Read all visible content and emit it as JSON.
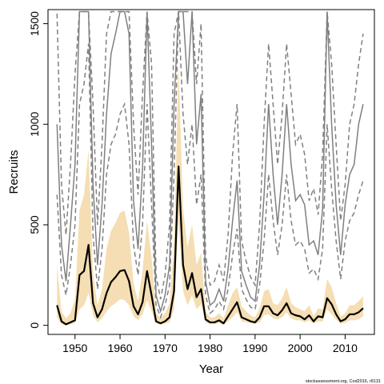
{
  "chart_data": {
    "type": "line",
    "title": "",
    "xlabel": "Year",
    "ylabel": "Recruits",
    "credit": "stockassessment.org, Cod2016, r8131",
    "xlim": [
      1944,
      2016.5
    ],
    "ylim": [
      -45,
      1570
    ],
    "x_ticks": [
      1950,
      1960,
      1970,
      1980,
      1990,
      2000,
      2010
    ],
    "y_ticks": [
      0,
      500,
      1000,
      1500
    ],
    "grid": false,
    "legend": "none",
    "colors": {
      "main": "#000000",
      "band": "#f5deb3",
      "other": "#808080"
    },
    "main_series": {
      "x": [
        1946,
        1947,
        1948,
        1949,
        1950,
        1951,
        1952,
        1953,
        1954,
        1955,
        1956,
        1957,
        1958,
        1959,
        1960,
        1961,
        1962,
        1963,
        1964,
        1965,
        1966,
        1967,
        1968,
        1969,
        1970,
        1971,
        1972,
        1973,
        1974,
        1975,
        1976,
        1977,
        1978,
        1979,
        1980,
        1981,
        1982,
        1983,
        1984,
        1985,
        1986,
        1987,
        1988,
        1989,
        1990,
        1991,
        1992,
        1993,
        1994,
        1995,
        1996,
        1997,
        1998,
        1999,
        2000,
        2001,
        2002,
        2003,
        2004,
        2005,
        2006,
        2007,
        2008,
        2009,
        2010,
        2011,
        2012,
        2013,
        2014
      ],
      "y": [
        100,
        20,
        5,
        15,
        25,
        250,
        270,
        400,
        110,
        40,
        80,
        160,
        215,
        240,
        270,
        275,
        220,
        95,
        55,
        115,
        270,
        150,
        20,
        10,
        20,
        40,
        170,
        790,
        300,
        180,
        260,
        140,
        180,
        30,
        15,
        15,
        25,
        10,
        45,
        80,
        115,
        40,
        30,
        20,
        15,
        40,
        95,
        95,
        60,
        50,
        75,
        110,
        60,
        50,
        45,
        30,
        50,
        20,
        45,
        40,
        135,
        105,
        55,
        20,
        30,
        55,
        55,
        65,
        85
      ],
      "ci_lower": [
        40,
        5,
        0,
        5,
        10,
        80,
        100,
        160,
        50,
        15,
        35,
        70,
        95,
        110,
        130,
        125,
        100,
        45,
        25,
        55,
        125,
        70,
        10,
        3,
        8,
        15,
        80,
        520,
        170,
        100,
        150,
        80,
        105,
        15,
        5,
        5,
        10,
        3,
        20,
        40,
        65,
        20,
        15,
        10,
        5,
        15,
        50,
        55,
        35,
        30,
        40,
        65,
        35,
        25,
        25,
        15,
        25,
        8,
        20,
        18,
        80,
        55,
        28,
        8,
        12,
        25,
        25,
        30,
        45
      ],
      "ci_upper": [
        300,
        70,
        35,
        60,
        130,
        570,
        650,
        870,
        260,
        100,
        180,
        380,
        470,
        510,
        560,
        570,
        460,
        210,
        120,
        270,
        520,
        340,
        60,
        35,
        60,
        110,
        410,
        1300,
        580,
        390,
        500,
        300,
        360,
        70,
        40,
        40,
        60,
        35,
        100,
        160,
        190,
        95,
        70,
        50,
        40,
        85,
        170,
        180,
        110,
        100,
        135,
        190,
        110,
        90,
        80,
        70,
        100,
        45,
        85,
        80,
        230,
        190,
        110,
        45,
        60,
        100,
        100,
        120,
        145
      ]
    },
    "other_series": [
      {
        "style": "solid",
        "x": [
          1946,
          1947,
          1948,
          1949,
          1950,
          1951,
          1952,
          1953,
          1954,
          1955,
          1956,
          1957,
          1958,
          1959,
          1960,
          1961,
          1962,
          1963,
          1964,
          1965,
          1966,
          1967,
          1968,
          1969,
          1970,
          1971,
          1972,
          1973,
          1974,
          1975,
          1976,
          1977,
          1978,
          1979,
          1980,
          1981,
          1982,
          1983,
          1984,
          1985,
          1986,
          1987,
          1988,
          1989,
          1990,
          1991,
          1992,
          1993,
          1994,
          1995,
          1996,
          1997,
          1998,
          1999,
          2000,
          2001,
          2002,
          2003,
          2004,
          2005,
          2006,
          2007,
          2008,
          2009,
          2010,
          2011,
          2012,
          2013,
          2014
        ],
        "y": [
          1000,
          400,
          220,
          500,
          800,
          1560,
          1560,
          1560,
          700,
          300,
          600,
          1050,
          1350,
          1450,
          1560,
          1560,
          1450,
          620,
          380,
          780,
          1560,
          900,
          150,
          70,
          150,
          300,
          1100,
          1560,
          1560,
          1200,
          1560,
          900,
          1150,
          220,
          100,
          120,
          180,
          120,
          280,
          520,
          720,
          270,
          200,
          140,
          120,
          300,
          650,
          1100,
          750,
          500,
          750,
          1100,
          800,
          620,
          650,
          600,
          400,
          420,
          350,
          580,
          1560,
          1000,
          600,
          350,
          600,
          750,
          800,
          1000,
          1100
        ]
      },
      {
        "style": "dashed",
        "x": [
          1946,
          1947,
          1948,
          1949,
          1950,
          1951,
          1952,
          1953,
          1954,
          1955,
          1956,
          1957,
          1958,
          1959,
          1960,
          1961,
          1962,
          1963,
          1964,
          1965,
          1966,
          1967,
          1968,
          1969,
          1970,
          1971,
          1972,
          1973,
          1974,
          1975,
          1976,
          1977,
          1978,
          1979,
          1980,
          1981,
          1982,
          1983,
          1984,
          1985,
          1986,
          1987,
          1988,
          1989,
          1990,
          1991,
          1992,
          1993,
          1994,
          1995,
          1996,
          1997,
          1998,
          1999,
          2000,
          2001,
          2002,
          2003,
          2004,
          2005,
          2006,
          2007,
          2008,
          2009,
          2010,
          2011,
          2012,
          2013,
          2014
        ],
        "y": [
          1550,
          700,
          450,
          800,
          1250,
          1560,
          1560,
          1560,
          1100,
          500,
          900,
          1450,
          1560,
          1560,
          1560,
          1560,
          1560,
          1000,
          650,
          1150,
          1560,
          1300,
          250,
          130,
          250,
          500,
          1450,
          1560,
          1560,
          1560,
          1560,
          1200,
          1500,
          350,
          200,
          220,
          300,
          220,
          450,
          850,
          1100,
          420,
          320,
          240,
          200,
          500,
          1000,
          1400,
          1100,
          800,
          1050,
          1400,
          1150,
          900,
          950,
          850,
          620,
          680,
          550,
          850,
          1560,
          1300,
          900,
          520,
          700,
          1000,
          1100,
          1300,
          1450
        ]
      },
      {
        "style": "dashed",
        "x": [
          1946,
          1947,
          1948,
          1949,
          1950,
          1951,
          1952,
          1953,
          1954,
          1955,
          1956,
          1957,
          1958,
          1959,
          1960,
          1961,
          1962,
          1963,
          1964,
          1965,
          1966,
          1967,
          1968,
          1969,
          1970,
          1971,
          1972,
          1973,
          1974,
          1975,
          1976,
          1977,
          1978,
          1979,
          1980,
          1981,
          1982,
          1983,
          1984,
          1985,
          1986,
          1987,
          1988,
          1989,
          1990,
          1991,
          1992,
          1993,
          1994,
          1995,
          1996,
          1997,
          1998,
          1999,
          2000,
          2001,
          2002,
          2003,
          2004,
          2005,
          2006,
          2007,
          2008,
          2009,
          2010,
          2011,
          2012,
          2013,
          2014
        ],
        "y": [
          650,
          250,
          150,
          300,
          500,
          1100,
          1200,
          1400,
          450,
          180,
          380,
          750,
          900,
          950,
          1050,
          1100,
          900,
          400,
          250,
          500,
          1100,
          600,
          100,
          40,
          100,
          200,
          750,
          1560,
          1050,
          800,
          1000,
          600,
          750,
          150,
          60,
          80,
          120,
          80,
          180,
          350,
          480,
          180,
          130,
          90,
          80,
          200,
          420,
          750,
          520,
          350,
          500,
          750,
          520,
          400,
          420,
          380,
          260,
          280,
          230,
          380,
          1000,
          680,
          420,
          230,
          420,
          520,
          560,
          650,
          720
        ]
      }
    ]
  }
}
